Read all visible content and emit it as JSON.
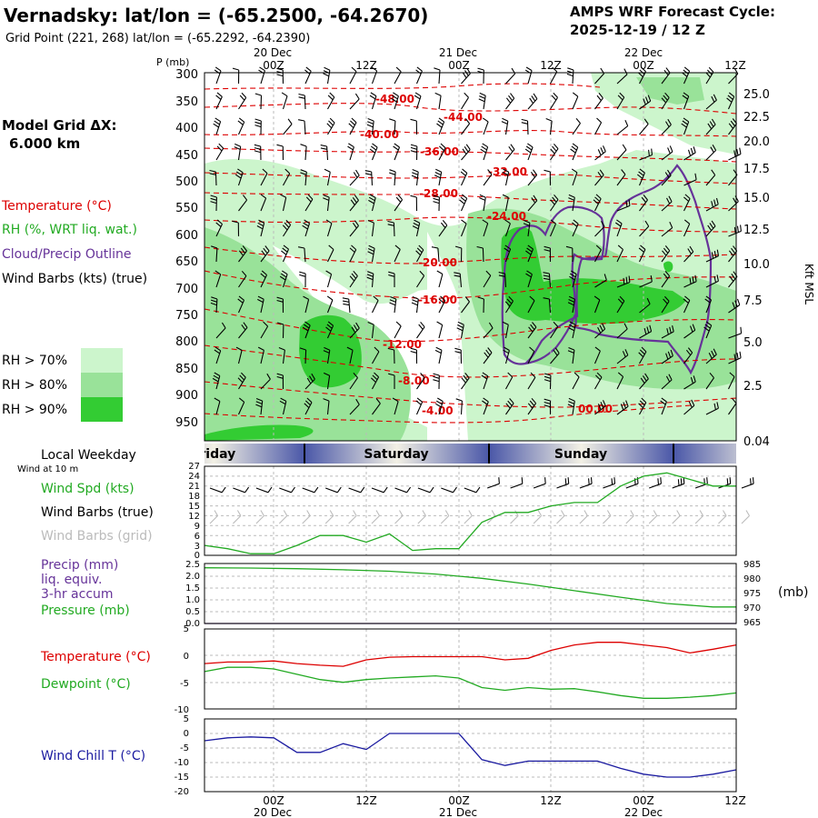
{
  "header": {
    "title": "Vernadsky:  lat/lon = (-65.2500, -64.2670)",
    "subtitle": "Grid Point (221, 268) lat/lon = (-65.2292, -64.2390)",
    "forecast_label": "AMPS WRF Forecast Cycle:",
    "forecast_cycle": "2025-12-19 / 12  Z"
  },
  "model": {
    "grid_label": "Model Grid ΔX:",
    "grid_value": "6.000 km"
  },
  "colors": {
    "temperature": "#dd0000",
    "rh": "#22aa22",
    "cloud": "#663399",
    "wind_chill": "#1a1aa0",
    "pressure": "#22aa22",
    "grid_barbs": "#bbbbbb",
    "rh70": "#ccf5cc",
    "rh80": "#99e299",
    "rh90": "#33cc33",
    "weekday_band": "#4a57a8"
  },
  "time_axis": {
    "ticks": [
      "00Z",
      "12Z",
      "00Z",
      "12Z",
      "00Z",
      "12Z"
    ],
    "dates": [
      "20 Dec",
      "21 Dec",
      "22 Dec"
    ],
    "weekday_label": "Local Weekday",
    "weekdays": [
      "Friday",
      "Saturday",
      "Sunday"
    ]
  },
  "cross_section": {
    "y_title": "P (mb)",
    "pressure_ticks": [
      "300",
      "350",
      "400",
      "450",
      "500",
      "550",
      "600",
      "650",
      "700",
      "750",
      "800",
      "850",
      "900",
      "950"
    ],
    "height_ticks": [
      "25.0",
      "22.5",
      "20.0",
      "17.5",
      "15.0",
      "12.5",
      "10.0",
      "7.5",
      "5.0",
      "2.5",
      "0.04"
    ],
    "height_label": "Kft MSL",
    "legend": [
      {
        "key": "temperature",
        "text": "Temperature (°C)"
      },
      {
        "key": "rh",
        "text": "RH (%, WRT liq. wat.)"
      },
      {
        "key": "cloud",
        "text": "Cloud/Precip Outline"
      },
      {
        "key": "wind",
        "text": "Wind Barbs (kts) (true)"
      }
    ],
    "rh_legend": [
      "RH > 70%",
      "RH > 80%",
      "RH > 90%"
    ],
    "isotherm_labels": [
      "-48.00",
      "-44.00",
      "-40.00",
      "-36.00",
      "-32.00",
      "-28.00",
      "-24.00",
      "-20.00",
      "-16.00",
      "-12.00",
      "-8.00",
      "-4.00",
      "00.00"
    ]
  },
  "wind_panel": {
    "sublabel": "Wind at 10 m",
    "legend": [
      "Wind Spd (kts)",
      "Wind Barbs (true)",
      "Wind Barbs (grid)"
    ],
    "y_ticks": [
      "27",
      "24",
      "21",
      "18",
      "15",
      "12",
      "9",
      "6",
      "3",
      "0"
    ]
  },
  "precip_panel": {
    "legend": [
      "Precip (mm)",
      "liq. equiv.",
      "3-hr accum",
      "Pressure (mb)"
    ],
    "left_ticks": [
      "2.5",
      "2.0",
      "1.5",
      "1.0",
      "0.5",
      "0.0"
    ],
    "right_ticks": [
      "985",
      "980",
      "975",
      "970",
      "965"
    ],
    "unit_label": "(mb)"
  },
  "temp_panel": {
    "legend": [
      "Temperature (°C)",
      "Dewpoint (°C)"
    ],
    "y_ticks": [
      "5",
      "0",
      "-5",
      "-10"
    ]
  },
  "chill_panel": {
    "legend": [
      "Wind Chill T (°C)"
    ],
    "y_ticks": [
      "5",
      "0",
      "-5",
      "-10",
      "-15",
      "-20"
    ]
  },
  "chart_data": [
    {
      "type": "line",
      "name": "wind-speed",
      "title": "Wind Spd (kts)",
      "x": [
        0,
        3,
        6,
        9,
        12,
        15,
        18,
        21,
        24,
        27,
        30,
        33,
        36,
        39,
        42,
        45,
        48,
        51,
        54,
        57,
        60,
        63,
        66,
        69
      ],
      "values": [
        3,
        2,
        0.5,
        0.5,
        3,
        6,
        6,
        4,
        6.5,
        1.5,
        2,
        2,
        10,
        13,
        13,
        15,
        16,
        16,
        21,
        24,
        25,
        23,
        21,
        21
      ],
      "ylim": [
        0,
        27
      ]
    },
    {
      "type": "line",
      "name": "pressure",
      "title": "Pressure (mb)",
      "x": [
        0,
        6,
        12,
        18,
        24,
        30,
        36,
        42,
        48,
        54,
        60,
        66,
        69
      ],
      "values": [
        984.5,
        984.4,
        984.2,
        983.8,
        983.3,
        982.3,
        980.8,
        978.8,
        976.5,
        974.2,
        972.0,
        970.8,
        970.8
      ],
      "ylim": [
        965,
        986
      ]
    },
    {
      "type": "line",
      "name": "precipitation",
      "title": "Precip (mm) 3-hr accum",
      "x": [
        0,
        69
      ],
      "values": [
        0,
        0
      ],
      "ylim": [
        0,
        2.5
      ]
    },
    {
      "type": "line",
      "name": "temperature",
      "title": "Temperature (°C)",
      "x": [
        0,
        3,
        6,
        9,
        12,
        15,
        18,
        21,
        24,
        27,
        30,
        33,
        36,
        39,
        42,
        45,
        48,
        51,
        54,
        57,
        60,
        63,
        66,
        69
      ],
      "values": [
        -1.5,
        -1.2,
        -1.2,
        -1.0,
        -1.5,
        -1.8,
        -2.0,
        -0.8,
        -0.3,
        -0.2,
        -0.2,
        -0.2,
        -0.2,
        -0.8,
        -0.5,
        1.0,
        2.0,
        2.5,
        2.5,
        2.0,
        1.5,
        0.5,
        1.2,
        2.0
      ],
      "ylim": [
        -10,
        5
      ]
    },
    {
      "type": "line",
      "name": "dewpoint",
      "title": "Dewpoint (°C)",
      "x": [
        0,
        3,
        6,
        9,
        12,
        15,
        18,
        21,
        24,
        27,
        30,
        33,
        36,
        39,
        42,
        45,
        48,
        51,
        54,
        57,
        60,
        63,
        66,
        69
      ],
      "values": [
        -3.0,
        -2.2,
        -2.2,
        -2.5,
        -3.5,
        -4.5,
        -5.0,
        -4.5,
        -4.2,
        -4.0,
        -3.8,
        -4.2,
        -6.0,
        -6.5,
        -6.0,
        -6.3,
        -6.2,
        -6.8,
        -7.5,
        -8.0,
        -8.0,
        -7.8,
        -7.5,
        -7.0
      ],
      "ylim": [
        -10,
        5
      ]
    },
    {
      "type": "line",
      "name": "wind-chill",
      "title": "Wind Chill T (°C)",
      "x": [
        0,
        3,
        6,
        9,
        12,
        15,
        18,
        21,
        24,
        27,
        30,
        33,
        36,
        39,
        42,
        45,
        48,
        51,
        54,
        57,
        60,
        63,
        66,
        69
      ],
      "values": [
        -2.5,
        -1.5,
        -1.2,
        -1.5,
        -6.5,
        -6.5,
        -3.5,
        -5.5,
        0,
        0,
        0,
        0,
        -9,
        -11,
        -9.5,
        -9.5,
        -9.5,
        -9.5,
        -12,
        -14,
        -15,
        -15,
        -14,
        -12.5
      ],
      "ylim": [
        -20,
        5
      ]
    }
  ]
}
